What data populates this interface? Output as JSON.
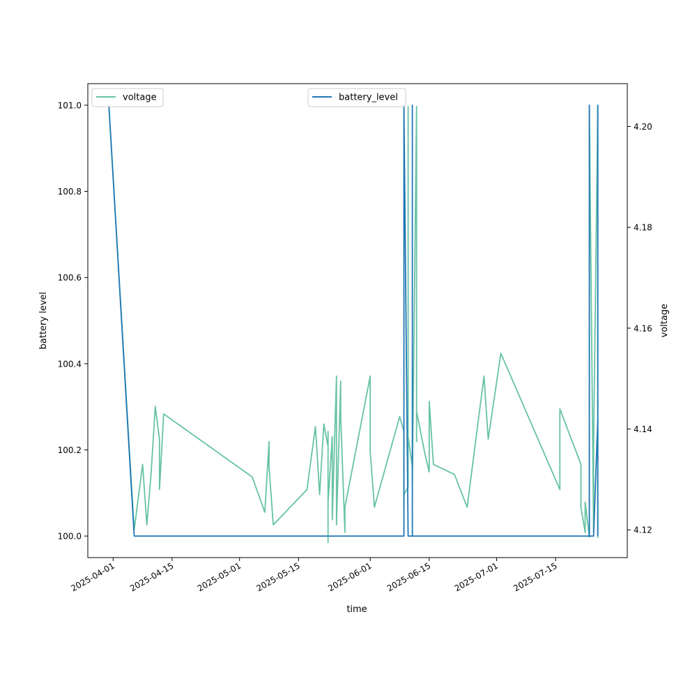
{
  "chart_data": {
    "type": "line",
    "xlabel": "time",
    "ylabel_left": "battery level",
    "ylabel_right": "voltage",
    "x_ticks": [
      "2025-04-01",
      "2025-04-15",
      "2025-05-01",
      "2025-05-15",
      "2025-06-01",
      "2025-06-15",
      "2025-07-01",
      "2025-07-15"
    ],
    "y_left_ticks": [
      "100.0",
      "100.2",
      "100.4",
      "100.6",
      "100.8",
      "101.0"
    ],
    "y_right_ticks": [
      "4.12",
      "4.14",
      "4.16",
      "4.18",
      "4.20"
    ],
    "xlim": [
      "2025-03-26",
      "2025-08-01"
    ],
    "ylim_left": [
      99.95,
      101.05
    ],
    "ylim_right": [
      4.1145,
      4.2085
    ],
    "grid": false,
    "legend_left": "upper-left",
    "legend_right": "upper-center",
    "colors": {
      "voltage": "#66c2a5",
      "battery_level": "#1f77b4"
    },
    "series": [
      {
        "name": "voltage",
        "axis": "right",
        "points": [
          [
            "2025-03-31",
            4.204
          ],
          [
            "2025-04-06",
            4.12
          ],
          [
            "2025-04-08",
            4.133
          ],
          [
            "2025-04-09",
            4.121
          ],
          [
            "2025-04-10",
            4.131
          ],
          [
            "2025-04-11",
            4.1445
          ],
          [
            "2025-04-12",
            4.138
          ],
          [
            "2025-04-12",
            4.1285
          ],
          [
            "2025-04-12",
            4.128
          ],
          [
            "2025-04-13",
            4.143
          ],
          [
            "2025-05-04",
            4.1305
          ],
          [
            "2025-05-07",
            4.1235
          ],
          [
            "2025-05-08",
            4.1375
          ],
          [
            "2025-05-08",
            4.1325
          ],
          [
            "2025-05-09",
            4.121
          ],
          [
            "2025-05-17",
            4.128
          ],
          [
            "2025-05-19",
            4.1405
          ],
          [
            "2025-05-20",
            4.127
          ],
          [
            "2025-05-21",
            4.141
          ],
          [
            "2025-05-22",
            4.1365
          ],
          [
            "2025-05-22",
            4.1395
          ],
          [
            "2025-05-22",
            4.1175
          ],
          [
            "2025-05-22",
            4.1255
          ],
          [
            "2025-05-23",
            4.1385
          ],
          [
            "2025-05-23",
            4.122
          ],
          [
            "2025-05-24",
            4.1505
          ],
          [
            "2025-05-24",
            4.121
          ],
          [
            "2025-05-25",
            4.1495
          ],
          [
            "2025-05-25",
            4.1425
          ],
          [
            "2025-05-26",
            4.1195
          ],
          [
            "2025-05-26",
            4.1205
          ],
          [
            "2025-05-26",
            4.1245
          ],
          [
            "2025-06-01",
            4.1505
          ],
          [
            "2025-06-01",
            4.1355
          ],
          [
            "2025-06-02",
            4.1245
          ],
          [
            "2025-06-08",
            4.1425
          ],
          [
            "2025-06-09",
            4.1395
          ],
          [
            "2025-06-09",
            4.1245
          ],
          [
            "2025-06-09",
            4.1385
          ],
          [
            "2025-06-09",
            4.127
          ],
          [
            "2025-06-10",
            4.1285
          ],
          [
            "2025-06-10",
            4.204
          ],
          [
            "2025-06-10",
            4.1385
          ],
          [
            "2025-06-11",
            4.1325
          ],
          [
            "2025-06-11",
            4.129
          ],
          [
            "2025-06-12",
            4.204
          ],
          [
            "2025-06-12",
            4.1375
          ],
          [
            "2025-06-12",
            4.1435
          ],
          [
            "2025-06-14",
            4.135
          ],
          [
            "2025-06-15",
            4.1315
          ],
          [
            "2025-06-15",
            4.1455
          ],
          [
            "2025-06-16",
            4.133
          ],
          [
            "2025-06-21",
            4.131
          ],
          [
            "2025-06-24",
            4.1245
          ],
          [
            "2025-06-28",
            4.1505
          ],
          [
            "2025-06-29",
            4.138
          ],
          [
            "2025-07-02",
            4.155
          ],
          [
            "2025-07-16",
            4.128
          ],
          [
            "2025-07-16",
            4.144
          ],
          [
            "2025-07-21",
            4.133
          ],
          [
            "2025-07-21",
            4.1245
          ],
          [
            "2025-07-22",
            4.1195
          ],
          [
            "2025-07-22",
            4.1255
          ],
          [
            "2025-07-23",
            4.1185
          ],
          [
            "2025-07-23",
            4.204
          ],
          [
            "2025-07-24",
            4.1195
          ],
          [
            "2025-07-24",
            4.1365
          ],
          [
            "2025-07-25",
            4.204
          ],
          [
            "2025-07-25",
            4.1185
          ],
          [
            "2025-07-25",
            4.137
          ]
        ]
      },
      {
        "name": "battery_level",
        "axis": "left",
        "points": [
          [
            "2025-03-31",
            101.0
          ],
          [
            "2025-04-06",
            100.0
          ],
          [
            "2025-06-09",
            100.0
          ],
          [
            "2025-06-09",
            101.0
          ],
          [
            "2025-06-10",
            100.0
          ],
          [
            "2025-06-11",
            100.0
          ],
          [
            "2025-06-11",
            101.0
          ],
          [
            "2025-06-11",
            100.08
          ],
          [
            "2025-06-11",
            100.0
          ],
          [
            "2025-07-23",
            100.0
          ],
          [
            "2025-07-23",
            101.0
          ],
          [
            "2025-07-23",
            100.0
          ],
          [
            "2025-07-24",
            100.0
          ],
          [
            "2025-07-25",
            100.27
          ],
          [
            "2025-07-25",
            101.0
          ],
          [
            "2025-07-25",
            100.0
          ]
        ]
      }
    ]
  }
}
